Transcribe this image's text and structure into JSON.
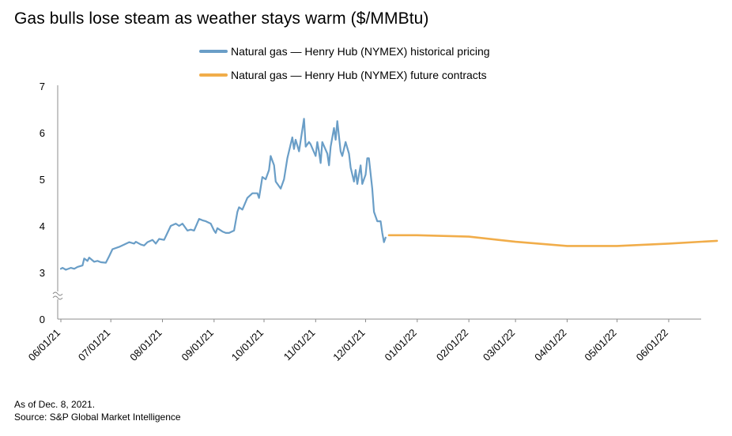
{
  "chart_data": {
    "type": "line",
    "title": "Gas bulls lose steam as weather stays warm ($/MMBtu)",
    "xlabel": "",
    "ylabel": "",
    "x_tick_labels": [
      "06/01/21",
      "07/01/21",
      "08/01/21",
      "09/01/21",
      "10/01/21",
      "11/01/21",
      "12/01/21",
      "01/01/22",
      "02/01/22",
      "03/01/22",
      "04/01/22",
      "05/01/22",
      "06/01/22"
    ],
    "y_tick_labels": [
      "0",
      "3",
      "4",
      "5",
      "6",
      "7"
    ],
    "y_axis_break": true,
    "ylim": [
      0,
      7
    ],
    "xlim": [
      "2021-06-01",
      "2022-06-30"
    ],
    "grid": false,
    "legend_position": "top",
    "series": [
      {
        "name": "Natural gas — Henry Hub (NYMEX) historical pricing",
        "color": "#6a9ec7",
        "points": [
          [
            "2021-06-01",
            3.08
          ],
          [
            "2021-06-02",
            3.1
          ],
          [
            "2021-06-04",
            3.06
          ],
          [
            "2021-06-07",
            3.1
          ],
          [
            "2021-06-09",
            3.08
          ],
          [
            "2021-06-11",
            3.12
          ],
          [
            "2021-06-14",
            3.15
          ],
          [
            "2021-06-15",
            3.3
          ],
          [
            "2021-06-17",
            3.25
          ],
          [
            "2021-06-18",
            3.32
          ],
          [
            "2021-06-21",
            3.23
          ],
          [
            "2021-06-23",
            3.25
          ],
          [
            "2021-06-25",
            3.22
          ],
          [
            "2021-06-28",
            3.21
          ],
          [
            "2021-06-30",
            3.35
          ],
          [
            "2021-07-02",
            3.5
          ],
          [
            "2021-07-06",
            3.55
          ],
          [
            "2021-07-09",
            3.6
          ],
          [
            "2021-07-12",
            3.65
          ],
          [
            "2021-07-15",
            3.62
          ],
          [
            "2021-07-16",
            3.66
          ],
          [
            "2021-07-19",
            3.6
          ],
          [
            "2021-07-21",
            3.58
          ],
          [
            "2021-07-23",
            3.65
          ],
          [
            "2021-07-26",
            3.7
          ],
          [
            "2021-07-28",
            3.62
          ],
          [
            "2021-07-30",
            3.72
          ],
          [
            "2021-08-02",
            3.7
          ],
          [
            "2021-08-04",
            3.85
          ],
          [
            "2021-08-06",
            4.0
          ],
          [
            "2021-08-09",
            4.05
          ],
          [
            "2021-08-11",
            4.0
          ],
          [
            "2021-08-13",
            4.05
          ],
          [
            "2021-08-16",
            3.9
          ],
          [
            "2021-08-18",
            3.92
          ],
          [
            "2021-08-20",
            3.9
          ],
          [
            "2021-08-23",
            4.15
          ],
          [
            "2021-08-25",
            4.12
          ],
          [
            "2021-08-27",
            4.1
          ],
          [
            "2021-08-30",
            4.05
          ],
          [
            "2021-09-01",
            3.9
          ],
          [
            "2021-09-02",
            3.85
          ],
          [
            "2021-09-03",
            3.95
          ],
          [
            "2021-09-06",
            3.88
          ],
          [
            "2021-09-08",
            3.85
          ],
          [
            "2021-09-10",
            3.85
          ],
          [
            "2021-09-13",
            3.9
          ],
          [
            "2021-09-15",
            4.3
          ],
          [
            "2021-09-16",
            4.4
          ],
          [
            "2021-09-18",
            4.35
          ],
          [
            "2021-09-21",
            4.6
          ],
          [
            "2021-09-24",
            4.7
          ],
          [
            "2021-09-27",
            4.7
          ],
          [
            "2021-09-28",
            4.6
          ],
          [
            "2021-09-30",
            5.05
          ],
          [
            "2021-10-02",
            5.0
          ],
          [
            "2021-10-04",
            5.2
          ],
          [
            "2021-10-05",
            5.5
          ],
          [
            "2021-10-07",
            5.3
          ],
          [
            "2021-10-08",
            4.95
          ],
          [
            "2021-10-11",
            4.8
          ],
          [
            "2021-10-13",
            5.0
          ],
          [
            "2021-10-15",
            5.45
          ],
          [
            "2021-10-18",
            5.9
          ],
          [
            "2021-10-19",
            5.65
          ],
          [
            "2021-10-20",
            5.85
          ],
          [
            "2021-10-22",
            5.6
          ],
          [
            "2021-10-25",
            6.3
          ],
          [
            "2021-10-26",
            5.7
          ],
          [
            "2021-10-28",
            5.8
          ],
          [
            "2021-10-29",
            5.75
          ],
          [
            "2021-11-01",
            5.5
          ],
          [
            "2021-11-02",
            5.8
          ],
          [
            "2021-11-03",
            5.6
          ],
          [
            "2021-11-04",
            5.35
          ],
          [
            "2021-11-05",
            5.8
          ],
          [
            "2021-11-08",
            5.55
          ],
          [
            "2021-11-09",
            5.3
          ],
          [
            "2021-11-10",
            5.7
          ],
          [
            "2021-11-12",
            6.1
          ],
          [
            "2021-11-13",
            5.85
          ],
          [
            "2021-11-14",
            6.25
          ],
          [
            "2021-11-16",
            5.6
          ],
          [
            "2021-11-17",
            5.5
          ],
          [
            "2021-11-19",
            5.8
          ],
          [
            "2021-11-21",
            5.55
          ],
          [
            "2021-11-22",
            5.25
          ],
          [
            "2021-11-24",
            4.95
          ],
          [
            "2021-11-25",
            5.2
          ],
          [
            "2021-11-26",
            4.9
          ],
          [
            "2021-11-28",
            5.3
          ],
          [
            "2021-11-29",
            4.9
          ],
          [
            "2021-12-01",
            5.1
          ],
          [
            "2021-12-02",
            5.45
          ],
          [
            "2021-12-03",
            5.45
          ],
          [
            "2021-12-05",
            4.8
          ],
          [
            "2021-12-06",
            4.3
          ],
          [
            "2021-12-08",
            4.1
          ],
          [
            "2021-12-10",
            4.1
          ],
          [
            "2021-12-11",
            3.85
          ],
          [
            "2021-12-12",
            3.65
          ],
          [
            "2021-12-13",
            3.75
          ]
        ]
      },
      {
        "name": "Natural gas — Henry Hub (NYMEX) future contracts",
        "color": "#f1ad4a",
        "points": [
          [
            "2021-12-15",
            3.8
          ],
          [
            "2022-01-01",
            3.8
          ],
          [
            "2022-02-01",
            3.77
          ],
          [
            "2022-03-01",
            3.66
          ],
          [
            "2022-04-01",
            3.57
          ],
          [
            "2022-05-01",
            3.57
          ],
          [
            "2022-06-01",
            3.62
          ],
          [
            "2022-06-30",
            3.68
          ]
        ]
      }
    ]
  },
  "footnote": {
    "as_of": "As of Dec. 8, 2021.",
    "source": "Source: S&P Global Market Intelligence"
  }
}
